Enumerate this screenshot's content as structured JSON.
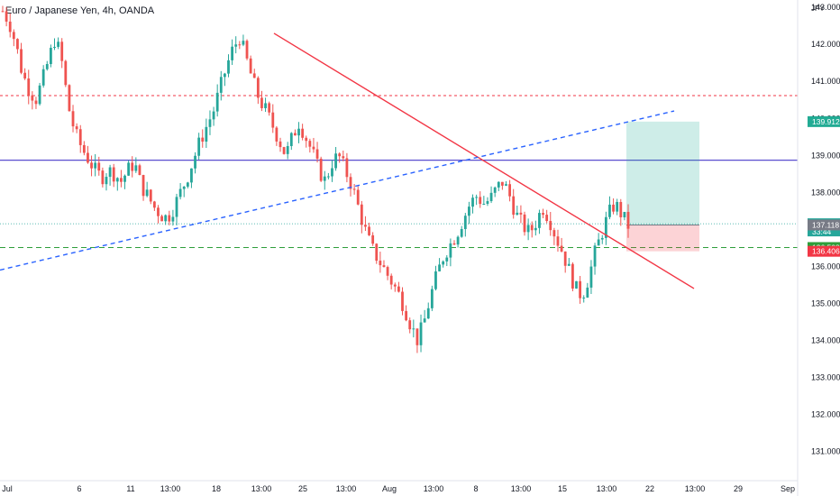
{
  "chart_data": {
    "type": "candlestick",
    "title": "Euro / Japanese Yen, 4h, OANDA",
    "currency": "JPY",
    "ylim": [
      130.4,
      143.2
    ],
    "y_ticks": [
      "143.000",
      "142.000",
      "141.000",
      "140.000",
      "139.000",
      "138.000",
      "137.000",
      "136.000",
      "135.000",
      "134.000",
      "133.000",
      "132.000",
      "131.000"
    ],
    "x_ticks": [
      "Jul",
      "6",
      "11",
      "13:00",
      "18",
      "13:00",
      "25",
      "13:00",
      "Aug",
      "13:00",
      "8",
      "13:00",
      "15",
      "13:00",
      "22",
      "13:00",
      "29",
      "Sep"
    ],
    "series_shape": [
      142.9,
      142.6,
      142.0,
      141.2,
      140.8,
      140.5,
      141.0,
      141.6,
      142.2,
      141.5,
      140.3,
      139.6,
      139.2,
      138.9,
      138.6,
      138.4,
      138.6,
      138.5,
      138.3,
      138.6,
      138.8,
      138.2,
      137.9,
      137.6,
      137.4,
      137.3,
      137.6,
      138.0,
      138.4,
      138.9,
      139.4,
      139.8,
      140.2,
      140.8,
      141.4,
      141.9,
      142.2,
      141.6,
      141.0,
      140.5,
      140.2,
      139.8,
      139.4,
      139.0,
      139.5,
      139.9,
      139.5,
      139.1,
      138.6,
      138.3,
      138.8,
      139.0,
      138.6,
      138.2,
      137.6,
      137.0,
      136.5,
      136.2,
      135.9,
      135.6,
      135.3,
      134.9,
      134.4,
      134.0,
      134.5,
      135.2,
      135.8,
      136.3,
      136.6,
      136.9,
      137.3,
      137.7,
      137.9,
      137.7,
      137.8,
      138.1,
      138.3,
      137.9,
      137.4,
      137.1,
      136.9,
      137.2,
      137.6,
      137.3,
      136.8,
      136.4,
      135.9,
      135.4,
      135.2,
      135.7,
      136.4,
      136.9,
      137.4,
      137.7,
      137.4,
      137.1
    ],
    "horizontal_levels": [
      {
        "price": 140.616,
        "label": "140.616",
        "style": "dashed",
        "color": "#f23645"
      },
      {
        "price": 138.869,
        "label": "138.869",
        "style": "solid",
        "color": "#5b4fcf"
      },
      {
        "price": 136.508,
        "label": "136.508",
        "style": "dashed",
        "color": "#2e9e3a"
      }
    ],
    "price_tags": [
      {
        "price": 139.912,
        "label": "139.912",
        "color": "#22ab94"
      },
      {
        "price": 137.151,
        "label": "137.151",
        "sublabel": "33:44",
        "color": "#26a69a"
      },
      {
        "price": 137.118,
        "label": "137.118",
        "color": "#787b86"
      },
      {
        "price": 136.508,
        "label": "136.508",
        "color": "#2e9e3a"
      },
      {
        "price": 136.406,
        "label": "136.406",
        "color": "#f23645"
      }
    ],
    "trendlines": [
      {
        "name": "descending-trendline",
        "color": "#f23645",
        "style": "solid",
        "from": [
          0.0,
          142.3
        ],
        "to": [
          1.0,
          135.4
        ]
      },
      {
        "name": "ascending-trendline",
        "color": "#2962ff",
        "style": "dashed",
        "from": [
          0.0,
          136.1
        ],
        "to": [
          1.0,
          140.1
        ]
      }
    ],
    "position": {
      "entry": 137.118,
      "target": 139.912,
      "stop": 136.406
    },
    "grid": false,
    "colors": {
      "up": "#26a69a",
      "down": "#ef5350"
    }
  }
}
